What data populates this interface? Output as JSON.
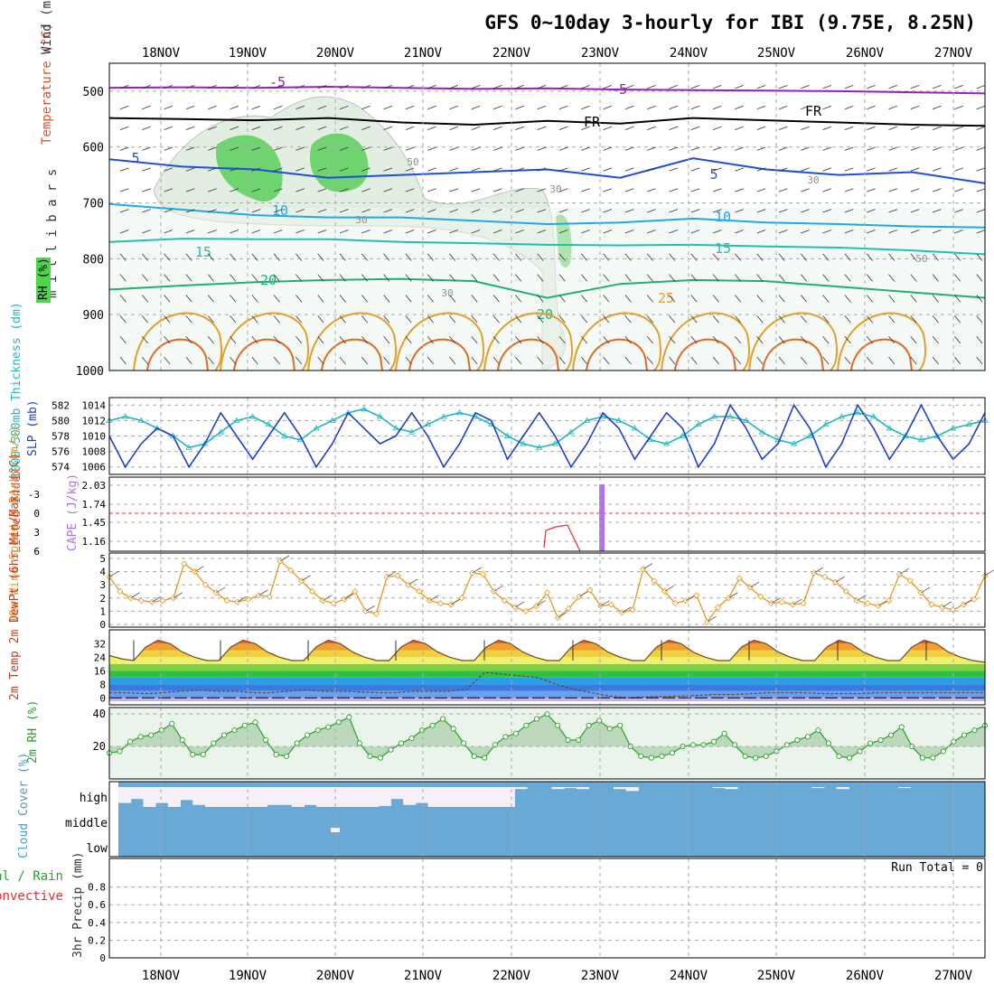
{
  "title": "GFS 0~10day 3-hourly for IBI (9.75E, 8.25N)",
  "chart_data": [
    {
      "panel": "upper-air-cross-section",
      "type": "contour",
      "ylabel": "millibars",
      "legend_labels": [
        "Wind (m/s)",
        "Temperature (°C)",
        "RH (%)"
      ],
      "yticks": [
        500,
        600,
        700,
        800,
        900,
        1000
      ],
      "ylim": [
        1000,
        450
      ],
      "dates": [
        "18NOV",
        "19NOV",
        "20NOV",
        "21NOV",
        "22NOV",
        "23NOV",
        "24NOV",
        "25NOV",
        "26NOV",
        "27NOV"
      ],
      "isotherm_labels": [
        "-5",
        "-5",
        "FR",
        "FR",
        "5",
        "5",
        "10",
        "10",
        "15",
        "15",
        "20",
        "20",
        "25"
      ],
      "rh_labels": [
        "50",
        "30",
        "30",
        "30",
        "30",
        "50"
      ],
      "isotherms": [
        {
          "label": "-5",
          "color": "#9b1fc0",
          "levels": [
            494,
            493,
            494,
            492,
            494,
            496,
            495,
            497,
            498,
            499,
            500,
            502,
            504
          ]
        },
        {
          "label": "FR",
          "color": "#000000",
          "levels": [
            548,
            550,
            552,
            548,
            556,
            560,
            553,
            558,
            548,
            552,
            556,
            560,
            562
          ]
        },
        {
          "label": "5",
          "color": "#1f4fd6",
          "levels": [
            622,
            635,
            640,
            655,
            650,
            645,
            640,
            655,
            620,
            640,
            650,
            645,
            665
          ]
        },
        {
          "label": "10",
          "color": "#22a8e6",
          "levels": [
            702,
            712,
            722,
            726,
            726,
            732,
            738,
            735,
            728,
            735,
            738,
            742,
            744
          ]
        },
        {
          "label": "15",
          "color": "#20c0b0",
          "levels": [
            770,
            764,
            765,
            765,
            770,
            772,
            775,
            776,
            775,
            778,
            780,
            785,
            792
          ]
        },
        {
          "label": "20",
          "color": "#1fb070",
          "levels": [
            855,
            848,
            842,
            838,
            836,
            840,
            870,
            845,
            838,
            840,
            850,
            860,
            870
          ]
        }
      ],
      "rh_regions": [
        {
          "level": "moist",
          "days": [
            "19NOV",
            "20NOV",
            "21NOV"
          ],
          "rh_min": 70
        },
        {
          "level": "moist-column",
          "days": [
            "22NOV"
          ],
          "rh_min": 70
        }
      ]
    },
    {
      "panel": "thickness-slp",
      "type": "line",
      "ylabel_left": "1000-500mb Thickness (dm)",
      "ylabel_right": "SLP (mb)",
      "thickness_ticks": [
        574,
        576,
        578,
        580,
        582
      ],
      "slp_ticks": [
        1006,
        1008,
        1010,
        1012,
        1014
      ],
      "series": [
        {
          "name": "SLP (mb)",
          "color": "#1f3fc8",
          "values": [
            1010,
            1006,
            1009,
            1011,
            1010,
            1006,
            1009,
            1013,
            1010,
            1007,
            1010,
            1013,
            1010,
            1006,
            1009,
            1013,
            1011,
            1009,
            1010,
            1013,
            1010,
            1006,
            1009,
            1013,
            1012,
            1007,
            1010,
            1013,
            1010,
            1006,
            1009,
            1013,
            1011,
            1007,
            1010,
            1013,
            1011,
            1006,
            1009,
            1014,
            1011,
            1007,
            1009,
            1014,
            1011,
            1006,
            1009,
            1014,
            1011,
            1007,
            1010,
            1014,
            1010,
            1007,
            1009,
            1013
          ]
        },
        {
          "name": "1000-500mb Thickness (dm)",
          "color": "#20b8c0",
          "marker": "triangle",
          "values": [
            580,
            580.5,
            580,
            579,
            578,
            576.5,
            577,
            578.5,
            580,
            580.5,
            579.5,
            578,
            577.5,
            579,
            580,
            581,
            581.5,
            580.5,
            579,
            578.5,
            579.5,
            580.5,
            581,
            580.5,
            579.5,
            578,
            577,
            576.5,
            577,
            578.5,
            580,
            580.5,
            580,
            579,
            577.5,
            577,
            578,
            579.5,
            580.5,
            580.5,
            580,
            578.5,
            577.5,
            577,
            578,
            579.5,
            580.5,
            581,
            580.5,
            579,
            578,
            577.5,
            578,
            579,
            579.5,
            580
          ]
        }
      ]
    },
    {
      "panel": "lifted-index-cape",
      "type": "bar",
      "ylabel_left": "Lifted Index",
      "ylabel_right": "CAPE (J/kg)",
      "li_ticks": [
        "-3",
        "0",
        "3",
        "6"
      ],
      "cape_ticks": [
        "1.16",
        "1.45",
        "1.74",
        "2.03"
      ],
      "cape_event": {
        "time": "22NOV 15Z",
        "value": 2.03
      },
      "lifted_index": [
        3,
        0.8,
        0.6,
        3.5
      ]
    },
    {
      "panel": "10m-wind",
      "type": "line",
      "ylabel": "10m Wind Speed & Barbs (m/s)",
      "yticks": [
        0,
        1,
        2,
        3,
        4,
        5
      ],
      "ylim": [
        0,
        5
      ],
      "series": [
        {
          "name": "10m Wind Speed",
          "color": "#e89820",
          "marker": "diamond",
          "values": [
            3.6,
            2.5,
            2,
            1.8,
            1.7,
            1.8,
            2,
            4.6,
            4,
            3,
            2.4,
            1.8,
            1.7,
            1.9,
            2.2,
            2.1,
            4.8,
            4.1,
            3.3,
            2.5,
            1.8,
            1.6,
            1.9,
            2.5,
            1,
            0.8,
            3.6,
            3.7,
            3,
            2.5,
            1.8,
            1.6,
            1.5,
            2,
            3.9,
            3.8,
            2.5,
            1.8,
            1.3,
            1,
            1.4,
            2.4,
            0.5,
            1.2,
            2.1,
            2.6,
            1.4,
            1.5,
            0.9,
            1.1,
            4.2,
            3.3,
            2.5,
            1.6,
            1.8,
            2.2,
            0.2,
            1.3,
            2,
            3.5,
            2.8,
            2.1,
            1.6,
            1.7,
            1.5,
            1.6,
            3.9,
            3.6,
            3.2,
            2.5,
            1.8,
            1.6,
            1.4,
            1.8,
            3.8,
            3.3,
            2.4,
            1.5,
            1.3,
            1.1,
            1.5,
            1.9,
            3.7
          ]
        }
      ]
    },
    {
      "panel": "2m-temp",
      "type": "area",
      "ylabel": "2m Temp 2m DewPt (6hr Min/Max) (°C)",
      "yticks": [
        0,
        8,
        16,
        24,
        32
      ],
      "ylim": [
        -2,
        40
      ],
      "series": [
        {
          "name": "2m Temp",
          "values": [
            25,
            23,
            22,
            30,
            34,
            32,
            27,
            24,
            22,
            22,
            30,
            34,
            32,
            27,
            24,
            22,
            22,
            30,
            34,
            32,
            27,
            24,
            22,
            22,
            30,
            34,
            32,
            27,
            24,
            22,
            22,
            30,
            34,
            32,
            27,
            24,
            22,
            22,
            30,
            34,
            32,
            27,
            24,
            22,
            22,
            30,
            34,
            32,
            27,
            24,
            22,
            22,
            30,
            34,
            32,
            27,
            24,
            22,
            22,
            30,
            34,
            32,
            27,
            24,
            22,
            22,
            30,
            34,
            32,
            27,
            24,
            22,
            21
          ]
        },
        {
          "name": "2m DewPt",
          "values": [
            3,
            3,
            2.5,
            3,
            4,
            4.5,
            4,
            4,
            3,
            3,
            4,
            4.5,
            4,
            4,
            3.5,
            3,
            3,
            4,
            4,
            4,
            5,
            15,
            14,
            13,
            12,
            8,
            5,
            3,
            1,
            0,
            0.5,
            0.8,
            1,
            1.5,
            2,
            2,
            2.5,
            3,
            3,
            3,
            2.5,
            2.5,
            2.5,
            3,
            3,
            3,
            3,
            3,
            3,
            3
          ]
        }
      ]
    },
    {
      "panel": "2m-rh",
      "type": "area",
      "ylabel": "2m RH (%)",
      "yticks": [
        20,
        40
      ],
      "ylim": [
        0,
        44
      ],
      "series": [
        {
          "name": "2m RH",
          "color": "#2ca02c",
          "values": [
            16,
            17,
            23,
            26,
            27,
            30,
            34,
            24,
            15,
            15,
            22,
            27,
            30,
            33,
            35,
            24,
            15,
            14,
            22,
            27,
            30,
            32,
            35,
            38,
            22,
            14,
            13,
            18,
            22,
            25,
            30,
            33,
            37,
            31,
            22,
            14,
            13,
            21,
            26,
            28,
            33,
            37,
            40,
            33,
            24,
            24,
            33,
            36,
            31,
            33,
            20,
            14,
            13,
            14,
            16,
            20,
            21,
            21,
            23,
            28,
            21,
            14,
            13,
            14,
            17,
            21,
            24,
            26,
            30,
            22,
            14,
            13,
            17,
            22,
            24,
            27,
            32,
            20,
            13,
            13,
            17,
            23,
            27,
            30,
            33
          ]
        }
      ]
    },
    {
      "panel": "cloud-cover",
      "type": "bar",
      "ylabel": "Cloud Cover (%)",
      "yticks": [
        "high",
        "middle",
        "low"
      ],
      "series": [
        {
          "name": "high",
          "color": "#6aa8d6",
          "values": [
            20,
            40,
            0,
            20,
            0,
            35,
            10,
            0,
            0,
            0,
            0,
            0,
            10,
            10,
            0,
            10,
            0,
            0,
            0,
            0,
            0,
            5,
            40,
            10,
            20,
            0,
            0,
            0,
            0,
            0,
            0,
            0,
            90,
            100,
            100,
            90,
            95,
            90,
            100,
            100,
            90,
            80,
            100,
            100,
            100,
            100,
            100,
            100,
            95,
            90,
            100,
            100,
            100,
            100,
            100,
            100,
            95,
            100,
            90,
            100,
            100,
            100,
            100,
            95,
            100,
            100,
            100,
            100,
            100,
            100
          ]
        },
        {
          "name": "middle",
          "color": "#6aa8d6",
          "values": [
            0,
            0,
            0,
            0,
            0,
            0,
            0,
            0,
            0,
            0,
            0,
            0,
            0,
            0,
            0,
            0,
            0,
            0,
            0,
            0,
            0,
            0,
            0,
            0,
            0,
            0,
            0,
            0,
            0,
            0,
            0,
            0,
            0,
            0,
            0,
            0
          ]
        },
        {
          "name": "low",
          "color": "#6aa8d6",
          "values": [
            0,
            0,
            0,
            0,
            0,
            0,
            0,
            0,
            0,
            0,
            0,
            0,
            0,
            0,
            0,
            0,
            0,
            0,
            0,
            0,
            0,
            0,
            0,
            0,
            0,
            0,
            0,
            0,
            0,
            0,
            0,
            0,
            0,
            0,
            0,
            0
          ]
        }
      ]
    },
    {
      "panel": "3hr-precip",
      "type": "bar",
      "ylabel": "3hr Precip (mm)",
      "legend_labels": [
        "Total / Rain",
        "Convective"
      ],
      "yticks": [
        "0",
        "0.2",
        "0.4",
        "0.6",
        "0.8"
      ],
      "ylim": [
        0,
        1
      ],
      "run_total": "Run Total = 0",
      "values": []
    }
  ]
}
